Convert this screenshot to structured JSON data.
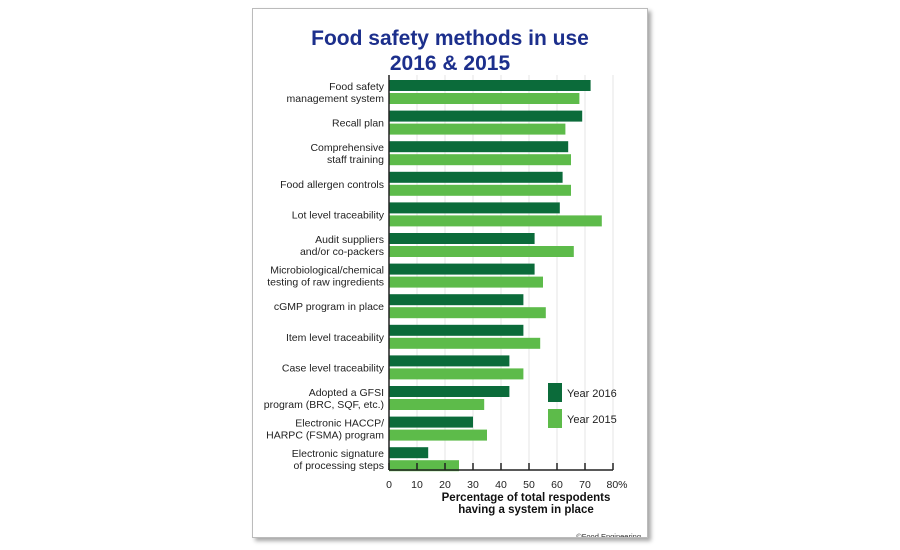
{
  "chart_data": {
    "type": "bar",
    "orientation": "horizontal",
    "title": "Food safety methods in use\n2016 & 2015",
    "xlabel": "Percentage of total respodents\nhaving a system in place",
    "ylabel": "",
    "xlim": [
      0,
      80
    ],
    "xticks": [
      "0",
      "10",
      "20",
      "30",
      "40",
      "50",
      "60",
      "70",
      "80%"
    ],
    "grid": true,
    "legend": "bottom-right",
    "categories": [
      "Food safety\nmanagement system",
      "Recall plan",
      "Comprehensive\nstaff training",
      "Food allergen controls",
      "Lot level traceability",
      "Audit suppliers\nand/or co-packers",
      "Microbiological/chemical\ntesting of raw ingredients",
      "cGMP program in place",
      "Item level traceability",
      "Case level traceability",
      "Adopted a GFSI\nprogram (BRC, SQF, etc.)",
      "Electronic HACCP/\nHARPC (FSMA) program",
      "Electronic signature\nof processing steps"
    ],
    "series": [
      {
        "name": "Year 2016",
        "color": "#0b6b3a",
        "values": [
          72,
          69,
          64,
          62,
          61,
          52,
          52,
          48,
          48,
          43,
          43,
          30,
          14
        ]
      },
      {
        "name": "Year 2015",
        "color": "#5dbb4a",
        "values": [
          68,
          63,
          65,
          65,
          76,
          66,
          55,
          56,
          54,
          48,
          34,
          35,
          25
        ]
      }
    ]
  },
  "copyright": "©Food Engineering"
}
